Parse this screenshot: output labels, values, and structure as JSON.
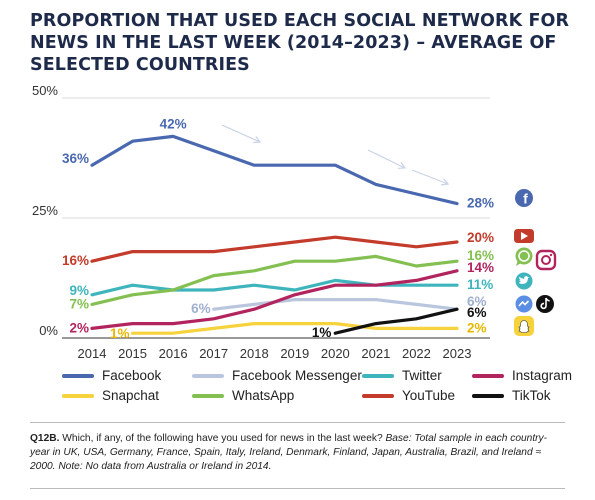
{
  "title": "PROPORTION THAT USED EACH SOCIAL NETWORK FOR NEWS IN THE LAST WEEK (2014–2023) – AVERAGE OF SELECTED COUNTRIES",
  "note": {
    "label": "Q12B.",
    "question": "Which, if any, of the following have you used for news in the last week?",
    "base": "Base: Total sample in each country-year in UK, USA, Germany, France, Spain, Italy, Ireland, Denmark, Finland, Japan, Australia, Brazil, and Ireland ≈ 2000. Note: No data from Australia or Ireland in 2014."
  },
  "colors": {
    "Facebook": "#4a68b0",
    "Facebook Messenger": "#b9c6de",
    "Twitter": "#3eb5bd",
    "Instagram": "#b2245e",
    "Snapchat": "#f6d23c",
    "WhatsApp": "#84c051",
    "YouTube": "#c33b2a",
    "TikTok": "#111111",
    "text": "#1e2a4a"
  },
  "icons": [
    "facebook-icon",
    "youtube-icon",
    "instagram-icon",
    "whatsapp-icon",
    "twitter-icon",
    "messenger-icon",
    "tiktok-icon",
    "snapchat-icon"
  ],
  "chart_data": {
    "type": "line",
    "x": [
      2014,
      2015,
      2016,
      2017,
      2018,
      2019,
      2020,
      2021,
      2022,
      2023
    ],
    "ylim": [
      0,
      50
    ],
    "yticks": [
      0,
      25,
      50
    ],
    "ytick_labels": [
      "0%",
      "25%",
      "50%"
    ],
    "legend": "bottom",
    "series": [
      {
        "name": "Facebook",
        "values": [
          36,
          41,
          42,
          39,
          36,
          36,
          36,
          32,
          30,
          28
        ]
      },
      {
        "name": "Facebook Messenger",
        "values": [
          null,
          null,
          null,
          6,
          7,
          8,
          8,
          8,
          7,
          6
        ]
      },
      {
        "name": "Twitter",
        "values": [
          9,
          11,
          10,
          10,
          11,
          10,
          12,
          11,
          11,
          11
        ]
      },
      {
        "name": "Instagram",
        "values": [
          2,
          3,
          3,
          4,
          6,
          9,
          11,
          11,
          12,
          14
        ]
      },
      {
        "name": "Snapchat",
        "values": [
          null,
          1,
          1,
          2,
          3,
          3,
          3,
          2,
          2,
          2
        ]
      },
      {
        "name": "WhatsApp",
        "values": [
          7,
          9,
          10,
          13,
          14,
          16,
          16,
          17,
          15,
          16
        ]
      },
      {
        "name": "YouTube",
        "values": [
          16,
          18,
          18,
          18,
          19,
          20,
          21,
          20,
          19,
          20
        ]
      },
      {
        "name": "TikTok",
        "values": [
          null,
          null,
          null,
          null,
          null,
          null,
          1,
          3,
          4,
          6
        ]
      }
    ],
    "data_labels": [
      {
        "series": "Facebook",
        "x": 2014,
        "text": "36%"
      },
      {
        "series": "Facebook",
        "x": 2016,
        "text": "42%"
      },
      {
        "series": "Facebook",
        "x": 2023,
        "text": "28%"
      },
      {
        "series": "YouTube",
        "x": 2014,
        "text": "16%"
      },
      {
        "series": "Twitter",
        "x": 2014,
        "text": "9%"
      },
      {
        "series": "WhatsApp",
        "x": 2014,
        "text": "7%"
      },
      {
        "series": "Instagram",
        "x": 2014,
        "text": "2%"
      },
      {
        "series": "Snapchat",
        "x": 2015,
        "text": "1%"
      },
      {
        "series": "Facebook Messenger",
        "x": 2017,
        "text": "6%"
      },
      {
        "series": "TikTok",
        "x": 2020,
        "text": "1%"
      },
      {
        "series": "YouTube",
        "x": 2023,
        "text": "20%"
      },
      {
        "series": "WhatsApp",
        "x": 2023,
        "text": "16%"
      },
      {
        "series": "Instagram",
        "x": 2023,
        "text": "14%"
      },
      {
        "series": "Twitter",
        "x": 2023,
        "text": "11%"
      },
      {
        "series": "Facebook Messenger",
        "x": 2023,
        "text": "6%"
      },
      {
        "series": "TikTok",
        "x": 2023,
        "text": "6%"
      },
      {
        "series": "Snapchat",
        "x": 2023,
        "text": "2%"
      }
    ]
  }
}
